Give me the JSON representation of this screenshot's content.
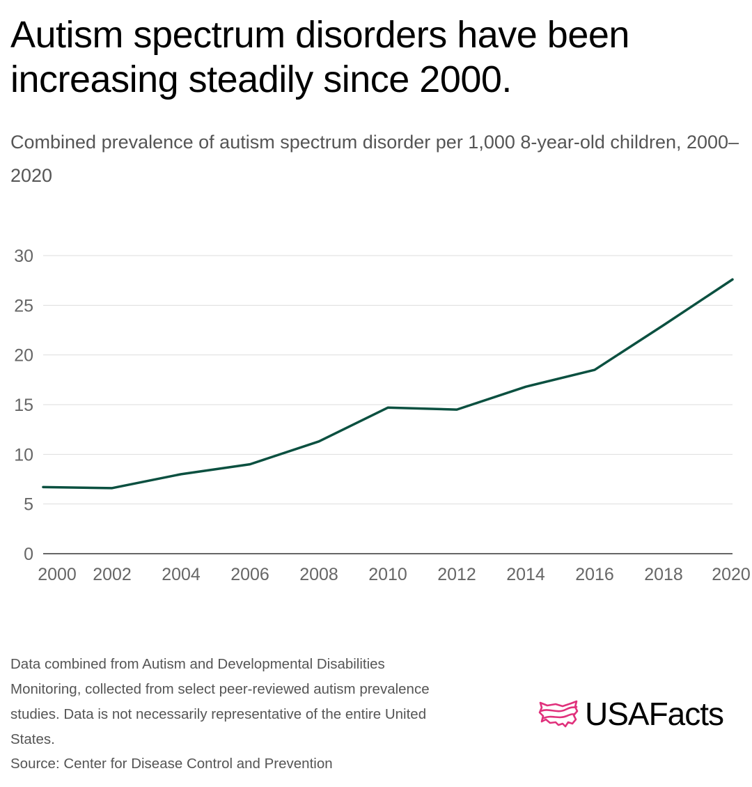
{
  "chart_data": {
    "type": "line",
    "title": "Autism spectrum disorders have been increasing steadily since 2000.",
    "subtitle": "Combined prevalence of autism spectrum disorder per 1,000 8-year-old children, 2000–2020",
    "x": [
      2000,
      2002,
      2004,
      2006,
      2008,
      2010,
      2012,
      2014,
      2016,
      2018,
      2020
    ],
    "series": [
      {
        "name": "",
        "values": [
          6.7,
          6.6,
          8.0,
          9.0,
          11.3,
          14.7,
          14.5,
          16.8,
          18.5,
          23.0,
          27.6
        ]
      }
    ],
    "xticks": [
      "2000",
      "2002",
      "2004",
      "2006",
      "2008",
      "2010",
      "2012",
      "2014",
      "2016",
      "2018",
      "2020"
    ],
    "yticks": [
      "0",
      "5",
      "10",
      "15",
      "20",
      "25",
      "30"
    ],
    "xlim": [
      2000,
      2020
    ],
    "ylim": [
      0,
      30
    ],
    "xlabel": "",
    "ylabel": "",
    "grid": true,
    "line_color": "#0b5040",
    "grid_color": "#dddddd"
  },
  "footnote": {
    "line1": "Data combined from Autism and Developmental Disabilities",
    "line2": "Monitoring, collected from select peer-reviewed autism prevalence",
    "line3": "studies. Data is not necessarily representative of the entire United",
    "line4": "States."
  },
  "source": "Source: Center for Disease Control and Prevention",
  "brand": {
    "name": "USAFacts",
    "icon": "usa-map-flag-icon",
    "icon_color": "#e0317c"
  }
}
